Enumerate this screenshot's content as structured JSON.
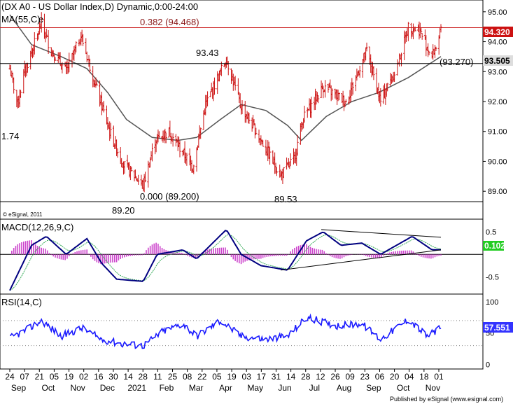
{
  "colors": {
    "background": "#ffffff",
    "bar": "#cc1111",
    "ma": "#555555",
    "macd_line": "#000080",
    "macd_signal": "#33aa55",
    "macd_hist": "#cc44cc",
    "rsi_line": "#1a1aff",
    "price_tag_bg": "#cc1111",
    "price_tag_grey": "#dddddd",
    "macd_tag_bg": "#22cc22",
    "rsi_tag_bg": "#3333ff",
    "fib_line": "#cc2222"
  },
  "header": {
    "title": "(DX A0 - US Dollar Index,D) Dynamic,0:00-24:00",
    "ma_label": "MA(55,C)",
    "ma_suffix": "e",
    "copyright": "© eSignal, 2011"
  },
  "annotations": {
    "fib_382": "0.382 (94.468)",
    "fib_000": "0.000 (89.200)",
    "peak_label": "93.43",
    "low_label_1": "89.20",
    "low_label_2": "89.53",
    "left_label": "1.74",
    "support_label": "(93.270)"
  },
  "price_tags": {
    "last_price": "94.320",
    "ma_value": "93.505"
  },
  "macd_panel": {
    "title": "MACD(12,26,9,C)",
    "value_tag": "0.102",
    "value_tag_hidden": "0.0"
  },
  "rsi_panel": {
    "title": "RSI(14,C)",
    "value_tag": "57.551"
  },
  "footer": {
    "published": "Published by eSignal (www.esignal.com)"
  },
  "chart_data": [
    {
      "type": "candlestick",
      "title": "(DX A0 - US Dollar Index,D) Dynamic,0:00-24:00",
      "ylim": [
        88.7,
        95.3
      ],
      "y_ticks": [
        "95.00",
        "94.00",
        "93.00",
        "92.00",
        "91.00",
        "90.00",
        "89.00"
      ],
      "x_ticks": [
        "24",
        "07",
        "21",
        "05",
        "19",
        "02",
        "16",
        "30",
        "14",
        "28",
        "11",
        "25",
        "08",
        "22",
        "05",
        "19",
        "03",
        "17",
        "31",
        "14",
        "28",
        "12",
        "26",
        "09",
        "23",
        "06",
        "20",
        "04",
        "18",
        "01"
      ],
      "x_months": [
        "Sep",
        "Oct",
        "Nov",
        "Dec",
        "2021",
        "Feb",
        "Mar",
        "Apr",
        "May",
        "Jun",
        "Jul",
        "Aug",
        "Sep",
        "Oct",
        "Nov"
      ],
      "price_path": [
        {
          "date": "2020-08-24",
          "price": 93.1
        },
        {
          "date": "2020-09-01",
          "price": 91.9
        },
        {
          "date": "2020-09-07",
          "price": 92.9
        },
        {
          "date": "2020-09-25",
          "price": 94.6
        },
        {
          "date": "2020-10-05",
          "price": 93.7
        },
        {
          "date": "2020-10-20",
          "price": 93.0
        },
        {
          "date": "2020-11-04",
          "price": 94.2
        },
        {
          "date": "2020-11-20",
          "price": 92.4
        },
        {
          "date": "2020-12-03",
          "price": 91.0
        },
        {
          "date": "2020-12-17",
          "price": 89.9
        },
        {
          "date": "2021-01-06",
          "price": 89.2
        },
        {
          "date": "2021-01-18",
          "price": 90.7
        },
        {
          "date": "2021-02-01",
          "price": 91.0
        },
        {
          "date": "2021-02-25",
          "price": 89.8
        },
        {
          "date": "2021-03-10",
          "price": 91.9
        },
        {
          "date": "2021-03-31",
          "price": 93.43
        },
        {
          "date": "2021-04-14",
          "price": 91.9
        },
        {
          "date": "2021-04-30",
          "price": 91.0
        },
        {
          "date": "2021-05-25",
          "price": 89.53
        },
        {
          "date": "2021-06-08",
          "price": 90.1
        },
        {
          "date": "2021-06-16",
          "price": 91.4
        },
        {
          "date": "2021-07-07",
          "price": 92.5
        },
        {
          "date": "2021-07-30",
          "price": 92.0
        },
        {
          "date": "2021-08-20",
          "price": 93.7
        },
        {
          "date": "2021-09-03",
          "price": 92.0
        },
        {
          "date": "2021-09-20",
          "price": 93.2
        },
        {
          "date": "2021-10-01",
          "price": 94.5
        },
        {
          "date": "2021-10-12",
          "price": 94.4
        },
        {
          "date": "2021-10-25",
          "price": 93.5
        },
        {
          "date": "2021-11-03",
          "price": 94.32
        }
      ],
      "ma_55": [
        {
          "date": "2020-08-24",
          "price": 94.9
        },
        {
          "date": "2020-09-15",
          "price": 93.9
        },
        {
          "date": "2020-10-15",
          "price": 93.5
        },
        {
          "date": "2020-11-10",
          "price": 93.1
        },
        {
          "date": "2020-12-01",
          "price": 92.3
        },
        {
          "date": "2020-12-20",
          "price": 91.4
        },
        {
          "date": "2021-01-15",
          "price": 90.8
        },
        {
          "date": "2021-02-10",
          "price": 90.7
        },
        {
          "date": "2021-03-01",
          "price": 90.8
        },
        {
          "date": "2021-03-25",
          "price": 91.4
        },
        {
          "date": "2021-04-15",
          "price": 91.9
        },
        {
          "date": "2021-05-10",
          "price": 91.7
        },
        {
          "date": "2021-06-01",
          "price": 91.2
        },
        {
          "date": "2021-06-15",
          "price": 90.7
        },
        {
          "date": "2021-07-10",
          "price": 91.5
        },
        {
          "date": "2021-08-05",
          "price": 92.0
        },
        {
          "date": "2021-09-01",
          "price": 92.3
        },
        {
          "date": "2021-10-01",
          "price": 92.8
        },
        {
          "date": "2021-11-03",
          "price": 93.505
        }
      ],
      "fibonacci": [
        {
          "label": "0.382 (94.468)",
          "price": 94.468
        },
        {
          "label": "0.000 (89.200)",
          "price": 89.2
        }
      ],
      "horizontal_level": 93.27,
      "last_price": 94.32
    },
    {
      "type": "line",
      "title": "MACD(12,26,9,C)",
      "ylim": [
        -0.85,
        0.75
      ],
      "y_ticks": [
        "0.5",
        "-0.5"
      ],
      "last_value": 0.102,
      "macd": [
        {
          "date": "2020-08-24",
          "value": -0.8
        },
        {
          "date": "2020-09-15",
          "value": 0.2
        },
        {
          "date": "2020-09-30",
          "value": 0.4
        },
        {
          "date": "2020-10-20",
          "value": 0.0
        },
        {
          "date": "2020-11-10",
          "value": 0.35
        },
        {
          "date": "2020-11-25",
          "value": -0.2
        },
        {
          "date": "2020-12-10",
          "value": -0.55
        },
        {
          "date": "2021-01-06",
          "value": -0.6
        },
        {
          "date": "2021-01-20",
          "value": 0.0
        },
        {
          "date": "2021-02-15",
          "value": 0.1
        },
        {
          "date": "2021-03-01",
          "value": -0.1
        },
        {
          "date": "2021-03-31",
          "value": 0.55
        },
        {
          "date": "2021-04-15",
          "value": 0.0
        },
        {
          "date": "2021-05-05",
          "value": -0.25
        },
        {
          "date": "2021-06-01",
          "value": -0.35
        },
        {
          "date": "2021-06-20",
          "value": 0.3
        },
        {
          "date": "2021-07-07",
          "value": 0.5
        },
        {
          "date": "2021-07-25",
          "value": 0.2
        },
        {
          "date": "2021-08-15",
          "value": 0.25
        },
        {
          "date": "2021-09-03",
          "value": 0.0
        },
        {
          "date": "2021-10-05",
          "value": 0.4
        },
        {
          "date": "2021-10-25",
          "value": 0.1
        },
        {
          "date": "2021-11-03",
          "value": 0.102
        }
      ]
    },
    {
      "type": "line",
      "title": "RSI(14,C)",
      "ylim": [
        -5,
        110
      ],
      "y_ticks": [
        "100",
        "50",
        "0"
      ],
      "last_value": 57.551,
      "rsi": [
        {
          "date": "2020-08-24",
          "value": 42
        },
        {
          "date": "2020-09-10",
          "value": 55
        },
        {
          "date": "2020-09-25",
          "value": 70
        },
        {
          "date": "2020-10-15",
          "value": 45
        },
        {
          "date": "2020-11-05",
          "value": 58
        },
        {
          "date": "2020-11-25",
          "value": 40
        },
        {
          "date": "2020-12-15",
          "value": 33
        },
        {
          "date": "2021-01-06",
          "value": 30
        },
        {
          "date": "2021-01-25",
          "value": 52
        },
        {
          "date": "2021-02-15",
          "value": 65
        },
        {
          "date": "2021-03-01",
          "value": 45
        },
        {
          "date": "2021-03-25",
          "value": 70
        },
        {
          "date": "2021-04-15",
          "value": 45
        },
        {
          "date": "2021-05-10",
          "value": 40
        },
        {
          "date": "2021-06-01",
          "value": 45
        },
        {
          "date": "2021-06-20",
          "value": 75
        },
        {
          "date": "2021-07-20",
          "value": 62
        },
        {
          "date": "2021-08-15",
          "value": 65
        },
        {
          "date": "2021-09-03",
          "value": 40
        },
        {
          "date": "2021-10-01",
          "value": 72
        },
        {
          "date": "2021-10-20",
          "value": 45
        },
        {
          "date": "2021-11-03",
          "value": 57.551
        }
      ]
    }
  ]
}
